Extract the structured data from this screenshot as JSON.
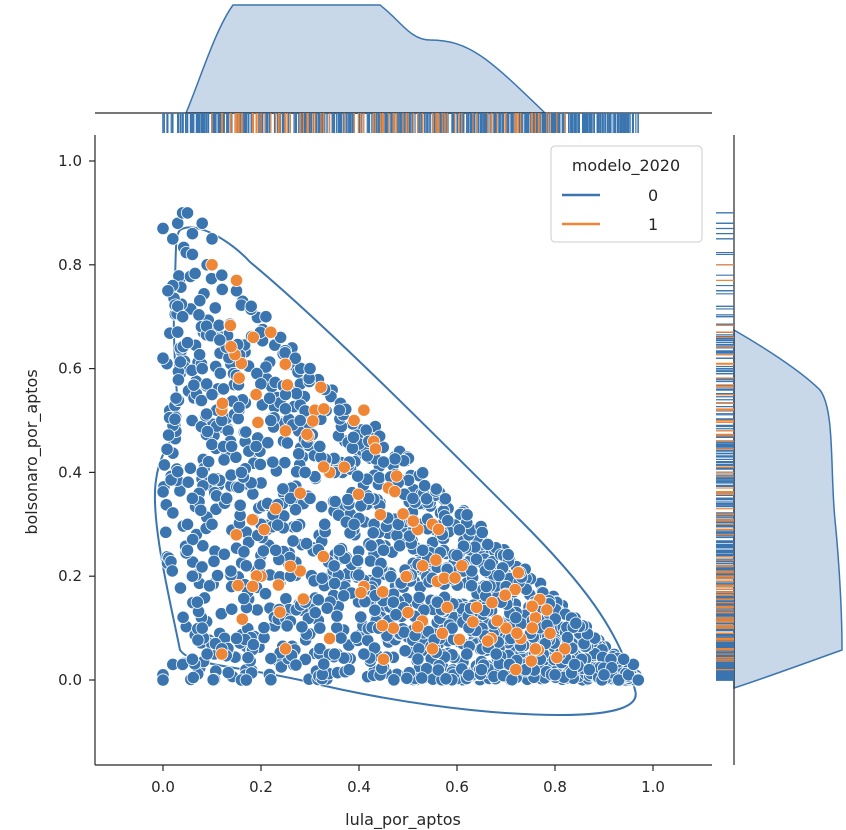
{
  "chart_data": {
    "type": "scatter",
    "plot_kind": "jointplot",
    "xlabel": "lula_por_aptos",
    "ylabel": "bolsonaro_por_aptos",
    "xlim": [
      -0.14,
      1.12
    ],
    "ylim": [
      -0.16,
      1.05
    ],
    "x_ticks": [
      "0.0",
      "0.2",
      "0.4",
      "0.6",
      "0.8",
      "1.0"
    ],
    "y_ticks": [
      "0.0",
      "0.2",
      "0.4",
      "0.6",
      "0.8",
      "1.0"
    ],
    "grid": false,
    "legend": {
      "title": "modelo_2020",
      "placement": "top-right",
      "entries": [
        {
          "label": "0",
          "color": "#3b75af"
        },
        {
          "label": "1",
          "color": "#ef8636"
        }
      ]
    },
    "colors": {
      "class_0": "#3b75af",
      "class_1": "#ef8636",
      "kde_fill": "#c8d8e8"
    },
    "series": [
      {
        "class": "0",
        "color": "#3b75af",
        "points": [
          [
            0.0,
            0.87
          ],
          [
            0.02,
            0.85
          ],
          [
            0.03,
            0.88
          ],
          [
            0.04,
            0.9
          ],
          [
            0.05,
            0.9
          ],
          [
            0.06,
            0.86
          ],
          [
            0.08,
            0.88
          ],
          [
            0.1,
            0.85
          ],
          [
            0.02,
            0.76
          ],
          [
            0.01,
            0.75
          ],
          [
            0.03,
            0.72
          ],
          [
            0.0,
            0.62
          ],
          [
            0.04,
            0.7
          ],
          [
            0.05,
            0.65
          ],
          [
            0.0,
            0.01
          ],
          [
            0.0,
            0.0
          ],
          [
            0.02,
            0.03
          ],
          [
            0.04,
            0.03
          ],
          [
            0.06,
            0.04
          ],
          [
            0.16,
            0.0
          ],
          [
            0.17,
            0.0
          ],
          [
            0.06,
            0.82
          ],
          [
            0.09,
            0.8
          ],
          [
            0.12,
            0.78
          ],
          [
            0.15,
            0.75
          ],
          [
            0.18,
            0.72
          ],
          [
            0.21,
            0.7
          ],
          [
            0.24,
            0.66
          ],
          [
            0.27,
            0.62
          ],
          [
            0.3,
            0.6
          ],
          [
            0.33,
            0.56
          ],
          [
            0.36,
            0.52
          ],
          [
            0.39,
            0.5
          ],
          [
            0.42,
            0.46
          ],
          [
            0.45,
            0.42
          ],
          [
            0.48,
            0.38
          ],
          [
            0.51,
            0.35
          ],
          [
            0.54,
            0.31
          ],
          [
            0.57,
            0.28
          ],
          [
            0.6,
            0.24
          ],
          [
            0.63,
            0.21
          ],
          [
            0.66,
            0.18
          ],
          [
            0.69,
            0.15
          ],
          [
            0.72,
            0.12
          ],
          [
            0.75,
            0.09
          ],
          [
            0.78,
            0.07
          ],
          [
            0.81,
            0.05
          ],
          [
            0.84,
            0.03
          ],
          [
            0.87,
            0.02
          ],
          [
            0.9,
            0.01
          ],
          [
            0.93,
            0.0
          ],
          [
            0.95,
            0.01
          ],
          [
            0.97,
            0.0
          ],
          [
            0.96,
            0.03
          ],
          [
            0.94,
            0.04
          ],
          [
            0.08,
            0.6
          ],
          [
            0.1,
            0.55
          ],
          [
            0.12,
            0.5
          ],
          [
            0.14,
            0.45
          ],
          [
            0.08,
            0.4
          ],
          [
            0.06,
            0.35
          ],
          [
            0.05,
            0.3
          ],
          [
            0.05,
            0.25
          ],
          [
            0.06,
            0.2
          ],
          [
            0.07,
            0.15
          ],
          [
            0.08,
            0.1
          ],
          [
            0.09,
            0.05
          ],
          [
            0.12,
            0.06
          ],
          [
            0.15,
            0.08
          ],
          [
            0.1,
            0.3
          ],
          [
            0.13,
            0.35
          ],
          [
            0.16,
            0.4
          ],
          [
            0.19,
            0.45
          ],
          [
            0.22,
            0.5
          ],
          [
            0.25,
            0.55
          ],
          [
            0.28,
            0.5
          ],
          [
            0.2,
            0.3
          ],
          [
            0.23,
            0.25
          ],
          [
            0.26,
            0.2
          ],
          [
            0.29,
            0.15
          ],
          [
            0.32,
            0.1
          ],
          [
            0.35,
            0.05
          ],
          [
            0.38,
            0.02
          ],
          [
            0.41,
            0.05
          ],
          [
            0.44,
            0.1
          ],
          [
            0.47,
            0.15
          ],
          [
            0.5,
            0.2
          ],
          [
            0.53,
            0.25
          ],
          [
            0.56,
            0.15
          ],
          [
            0.59,
            0.1
          ],
          [
            0.62,
            0.05
          ],
          [
            0.65,
            0.02
          ],
          [
            0.68,
            0.05
          ],
          [
            0.71,
            0.08
          ],
          [
            0.74,
            0.02
          ],
          [
            0.77,
            0.04
          ],
          [
            0.8,
            0.01
          ],
          [
            0.3,
            0.35
          ],
          [
            0.33,
            0.3
          ],
          [
            0.36,
            0.25
          ],
          [
            0.39,
            0.3
          ],
          [
            0.42,
            0.35
          ],
          [
            0.45,
            0.25
          ],
          [
            0.48,
            0.3
          ],
          [
            0.35,
            0.4
          ],
          [
            0.38,
            0.42
          ],
          [
            0.32,
            0.45
          ],
          [
            0.29,
            0.4
          ],
          [
            0.26,
            0.35
          ],
          [
            0.17,
            0.22
          ],
          [
            0.14,
            0.18
          ]
        ]
      },
      {
        "class": "1",
        "color": "#ef8636",
        "points": [
          [
            0.1,
            0.8
          ],
          [
            0.15,
            0.77
          ],
          [
            0.22,
            0.67
          ],
          [
            0.16,
            0.61
          ],
          [
            0.12,
            0.52
          ],
          [
            0.19,
            0.55
          ],
          [
            0.25,
            0.48
          ],
          [
            0.28,
            0.36
          ],
          [
            0.31,
            0.52
          ],
          [
            0.34,
            0.4
          ],
          [
            0.37,
            0.41
          ],
          [
            0.39,
            0.5
          ],
          [
            0.41,
            0.52
          ],
          [
            0.43,
            0.46
          ],
          [
            0.46,
            0.37
          ],
          [
            0.49,
            0.32
          ],
          [
            0.52,
            0.29
          ],
          [
            0.55,
            0.3
          ],
          [
            0.53,
            0.22
          ],
          [
            0.56,
            0.19
          ],
          [
            0.58,
            0.14
          ],
          [
            0.61,
            0.22
          ],
          [
            0.64,
            0.14
          ],
          [
            0.67,
            0.08
          ],
          [
            0.7,
            0.1
          ],
          [
            0.73,
            0.08
          ],
          [
            0.76,
            0.12
          ],
          [
            0.79,
            0.09
          ],
          [
            0.82,
            0.06
          ],
          [
            0.72,
            0.02
          ],
          [
            0.55,
            0.06
          ],
          [
            0.45,
            0.04
          ],
          [
            0.34,
            0.08
          ],
          [
            0.25,
            0.06
          ],
          [
            0.12,
            0.05
          ],
          [
            0.2,
            0.2
          ],
          [
            0.23,
            0.33
          ],
          [
            0.28,
            0.21
          ],
          [
            0.41,
            0.18
          ],
          [
            0.47,
            0.1
          ],
          [
            0.5,
            0.13
          ],
          [
            0.57,
            0.09
          ]
        ]
      }
    ],
    "rug_x_range": [
      0.0,
      0.97
    ],
    "rug_y_range": [
      0.0,
      0.9
    ]
  }
}
